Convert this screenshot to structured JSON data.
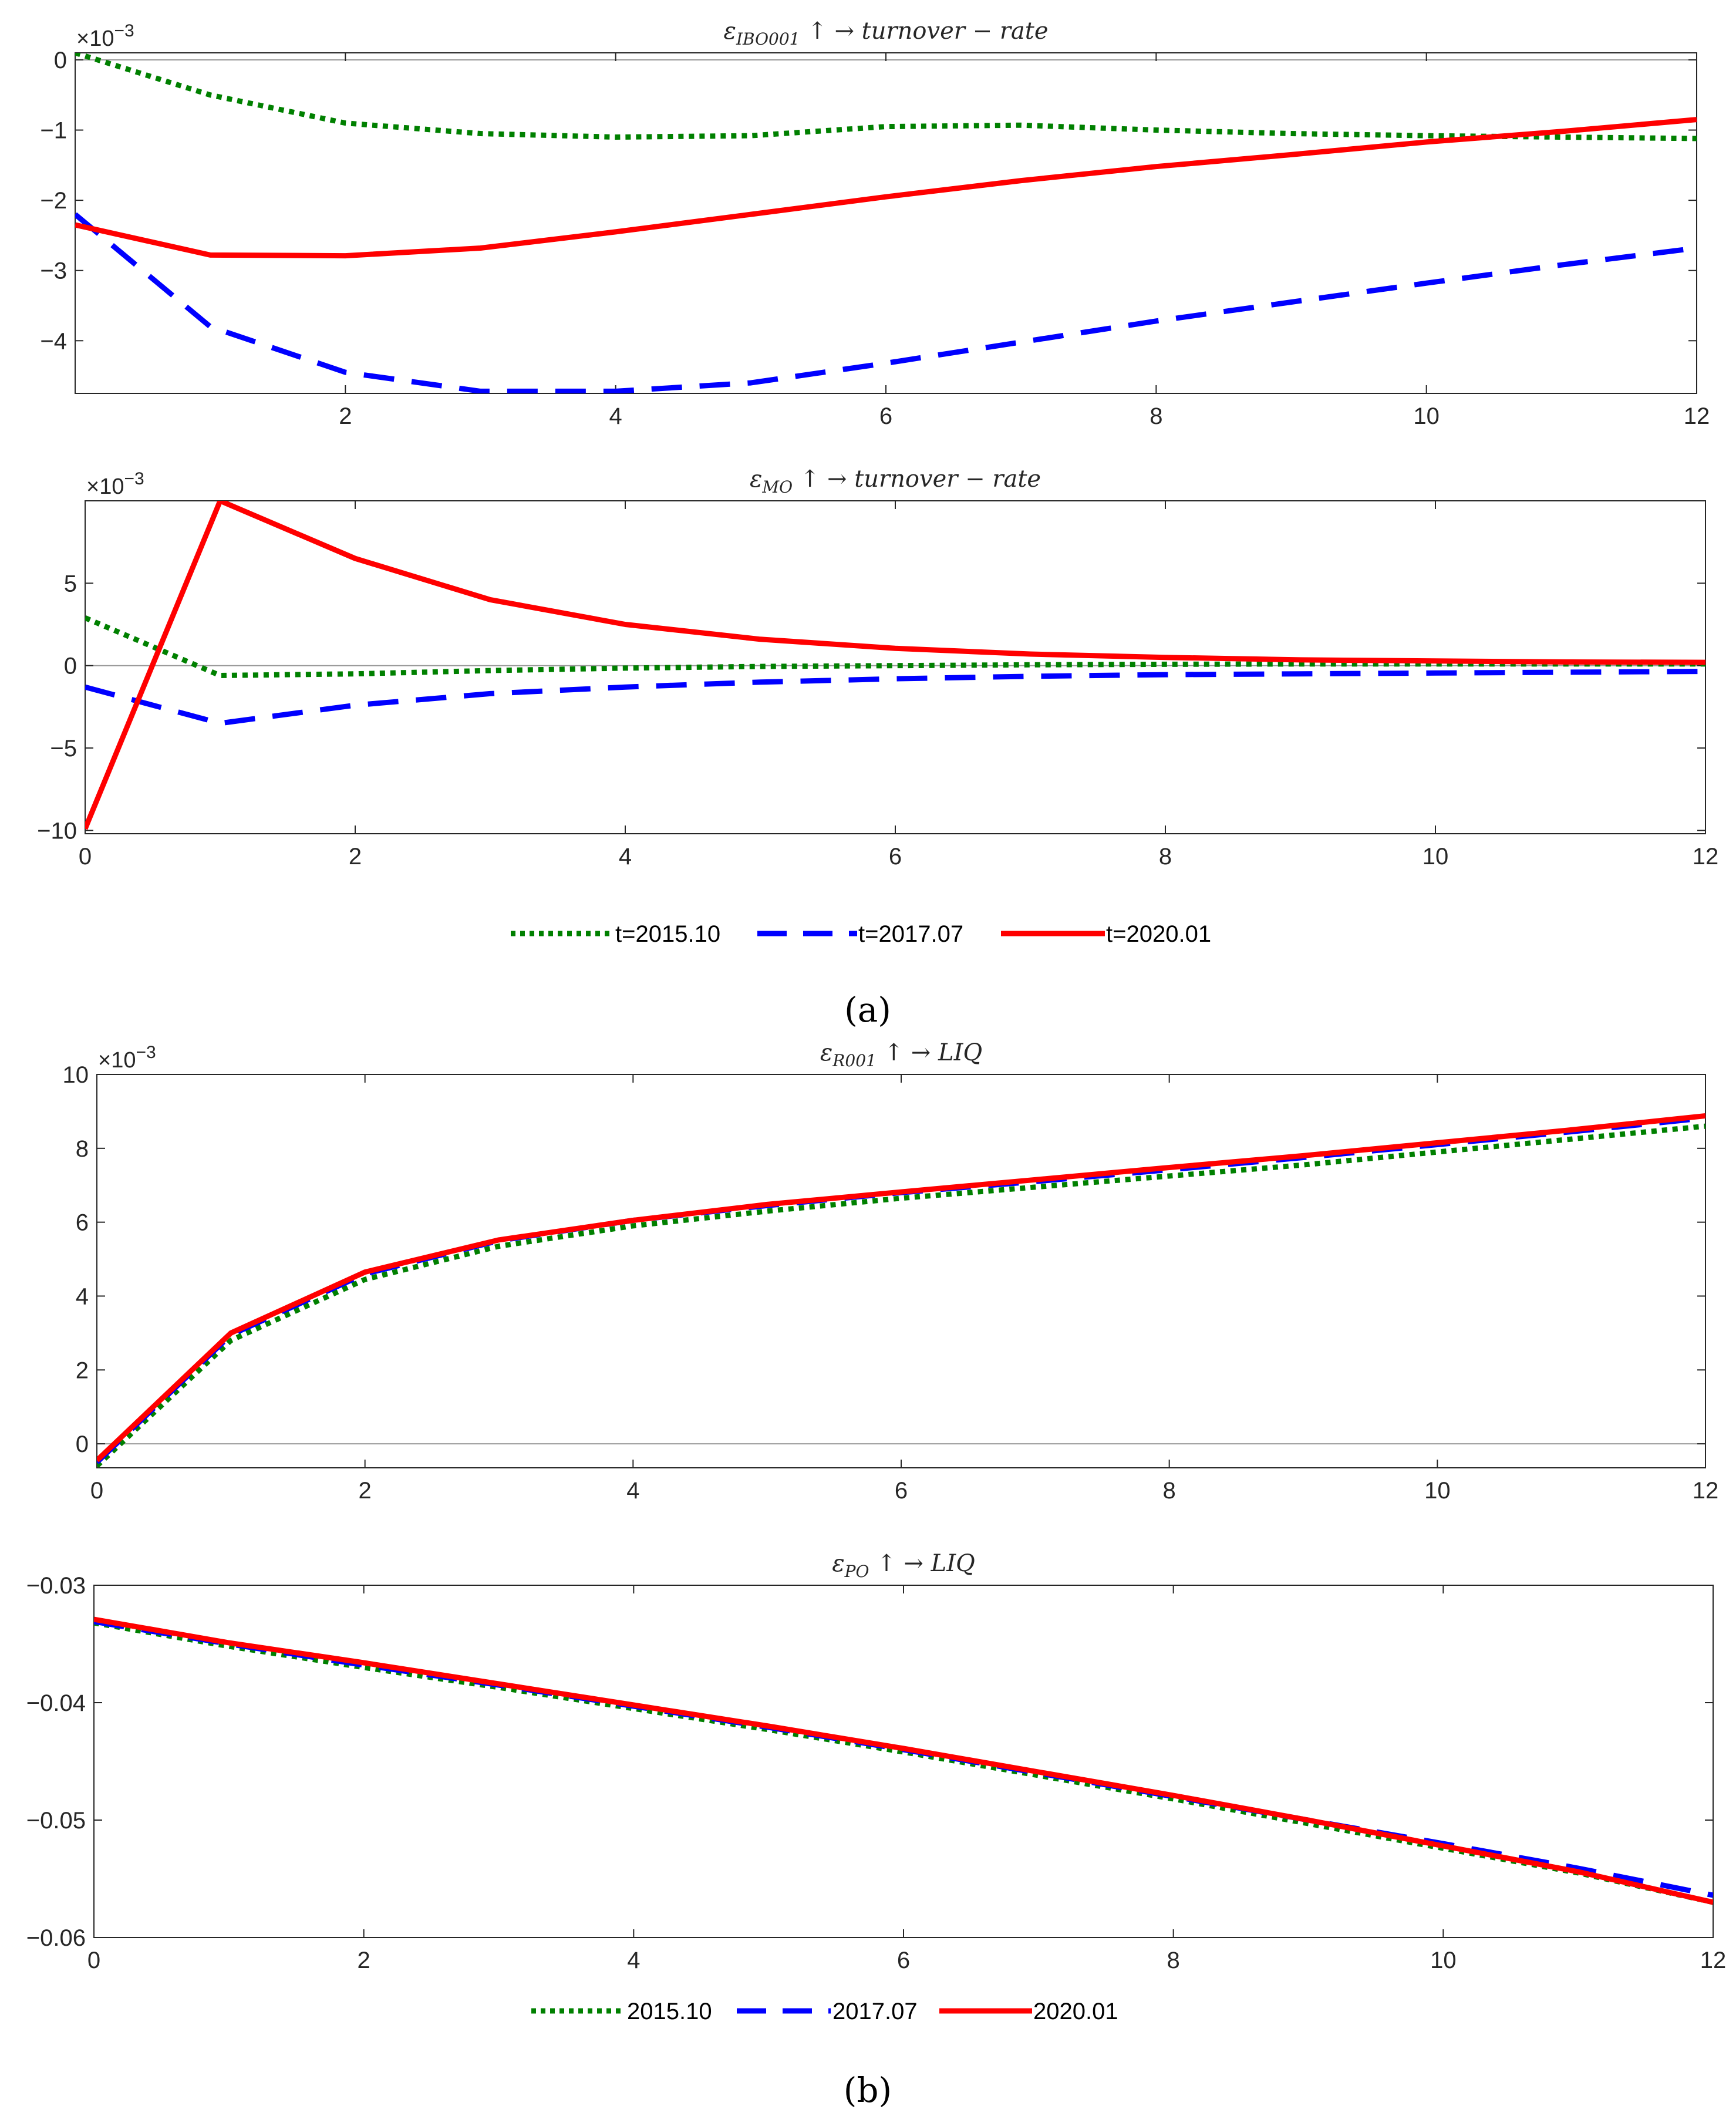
{
  "chart_data": [
    {
      "type": "line",
      "panel": "a-top",
      "title": "ε_IBO001 ↑ →  turnover − rate",
      "title_symbol": "ε",
      "title_sub": "IBO001",
      "title_rest": " ↑ →  turnover − rate",
      "y_multiplier": "×10",
      "y_exponent": "−3",
      "xlim": [
        0,
        12
      ],
      "ylim": [
        -4.75,
        0.1
      ],
      "xticks": [
        2,
        4,
        6,
        8,
        10,
        12
      ],
      "yticks": [
        0,
        -1,
        -2,
        -3,
        -4
      ],
      "ytick_labels": [
        "0",
        "−1",
        "−2",
        "−3",
        "−4"
      ],
      "zero_line": true,
      "x": [
        0,
        1,
        2,
        3,
        4,
        5,
        6,
        7,
        8,
        9,
        10,
        11,
        12
      ],
      "series": [
        {
          "name": "t=2015.10",
          "color": "#008000",
          "style": "dotted",
          "values": [
            0.1,
            -0.5,
            -0.9,
            -1.05,
            -1.1,
            -1.08,
            -0.95,
            -0.93,
            -1.0,
            -1.05,
            -1.08,
            -1.1,
            -1.12
          ]
        },
        {
          "name": "t=2017.07",
          "color": "#0000ff",
          "style": "dashed",
          "values": [
            -2.2,
            -3.8,
            -4.45,
            -4.72,
            -4.72,
            -4.6,
            -4.32,
            -4.02,
            -3.72,
            -3.45,
            -3.18,
            -2.92,
            -2.68
          ]
        },
        {
          "name": "t=2020.01",
          "color": "#ff0000",
          "style": "solid",
          "values": [
            -2.35,
            -2.78,
            -2.79,
            -2.68,
            -2.45,
            -2.2,
            -1.95,
            -1.72,
            -1.52,
            -1.35,
            -1.17,
            -1.02,
            -0.85
          ]
        }
      ]
    },
    {
      "type": "line",
      "panel": "a-bottom",
      "title": "ε_MO ↑ →  turnover − rate",
      "title_symbol": "ε",
      "title_sub": "MO",
      "title_rest": " ↑ →  turnover − rate",
      "y_multiplier": "×10",
      "y_exponent": "−3",
      "xlim": [
        0,
        12
      ],
      "ylim": [
        -10.2,
        10.0
      ],
      "xticks": [
        0,
        2,
        4,
        6,
        8,
        10,
        12
      ],
      "yticks": [
        5,
        0,
        -5,
        -10
      ],
      "ytick_labels": [
        "5",
        "0",
        "−5",
        "−10"
      ],
      "zero_line": true,
      "x": [
        0,
        1,
        2,
        3,
        4,
        5,
        6,
        7,
        8,
        9,
        10,
        11,
        12
      ],
      "series": [
        {
          "name": "t=2015.10",
          "color": "#008000",
          "style": "dotted",
          "values": [
            2.9,
            -0.6,
            -0.5,
            -0.3,
            -0.15,
            -0.05,
            0.0,
            0.05,
            0.08,
            0.1,
            0.1,
            0.1,
            0.1
          ]
        },
        {
          "name": "t=2017.07",
          "color": "#0000ff",
          "style": "dashed",
          "values": [
            -1.3,
            -3.5,
            -2.4,
            -1.7,
            -1.3,
            -1.0,
            -0.8,
            -0.65,
            -0.55,
            -0.5,
            -0.45,
            -0.4,
            -0.35
          ]
        },
        {
          "name": "t=2020.01",
          "color": "#ff0000",
          "style": "solid",
          "values": [
            -9.9,
            10.0,
            6.5,
            4.0,
            2.5,
            1.6,
            1.05,
            0.7,
            0.5,
            0.35,
            0.28,
            0.22,
            0.2
          ]
        }
      ]
    },
    {
      "type": "line",
      "panel": "b-top",
      "title": "ε_R001 ↑ →  LIQ",
      "title_symbol": "ε",
      "title_sub": "R001",
      "title_rest": " ↑ →  LIQ",
      "y_multiplier": "×10",
      "y_exponent": "−3",
      "xlim": [
        0,
        12
      ],
      "ylim": [
        -0.65,
        10.0
      ],
      "xticks": [
        0,
        2,
        4,
        6,
        8,
        10,
        12
      ],
      "yticks": [
        10,
        8,
        6,
        4,
        2,
        0
      ],
      "ytick_labels": [
        "10",
        "8",
        "6",
        "4",
        "2",
        "0"
      ],
      "zero_line": true,
      "x": [
        0,
        1,
        2,
        3,
        4,
        5,
        6,
        7,
        8,
        9,
        10,
        11,
        12
      ],
      "series": [
        {
          "name": "2015.10",
          "color": "#008000",
          "style": "dotted",
          "values": [
            -0.6,
            2.8,
            4.45,
            5.35,
            5.9,
            6.3,
            6.65,
            6.95,
            7.25,
            7.55,
            7.9,
            8.25,
            8.6
          ]
        },
        {
          "name": "2017.07",
          "color": "#0000ff",
          "style": "dashed",
          "values": [
            -0.5,
            2.95,
            4.6,
            5.5,
            6.05,
            6.45,
            6.8,
            7.1,
            7.42,
            7.75,
            8.1,
            8.45,
            8.82
          ]
        },
        {
          "name": "2020.01",
          "color": "#ff0000",
          "style": "solid",
          "values": [
            -0.45,
            3.0,
            4.65,
            5.52,
            6.05,
            6.48,
            6.82,
            7.15,
            7.48,
            7.8,
            8.15,
            8.5,
            8.88
          ]
        }
      ]
    },
    {
      "type": "line",
      "panel": "b-bottom",
      "title": "ε_PO ↑ →  LIQ",
      "title_symbol": "ε",
      "title_sub": "PO",
      "title_rest": " ↑ →  LIQ",
      "xlim": [
        0,
        12
      ],
      "ylim": [
        -0.06,
        -0.03
      ],
      "xticks": [
        0,
        2,
        4,
        6,
        8,
        10,
        12
      ],
      "yticks": [
        -0.03,
        -0.04,
        -0.05,
        -0.06
      ],
      "ytick_labels": [
        "−0.03",
        "−0.04",
        "−0.05",
        "−0.06"
      ],
      "zero_line": false,
      "x": [
        0,
        1,
        2,
        3,
        4,
        5,
        6,
        7,
        8,
        9,
        10,
        11,
        12
      ],
      "series": [
        {
          "name": "2015.10",
          "color": "#008000",
          "style": "dotted",
          "values": [
            -0.0332,
            -0.0352,
            -0.037,
            -0.0387,
            -0.0405,
            -0.0423,
            -0.0442,
            -0.0462,
            -0.0482,
            -0.0503,
            -0.0524,
            -0.0545,
            -0.057
          ]
        },
        {
          "name": "2017.07",
          "color": "#0000ff",
          "style": "dashed",
          "values": [
            -0.0331,
            -0.035,
            -0.0368,
            -0.0385,
            -0.0403,
            -0.0421,
            -0.044,
            -0.046,
            -0.048,
            -0.05,
            -0.052,
            -0.0541,
            -0.0564
          ]
        },
        {
          "name": "2020.01",
          "color": "#ff0000",
          "style": "solid",
          "values": [
            -0.0329,
            -0.0349,
            -0.0366,
            -0.0384,
            -0.0402,
            -0.042,
            -0.0439,
            -0.0459,
            -0.0479,
            -0.05,
            -0.0522,
            -0.0544,
            -0.057
          ]
        }
      ]
    }
  ],
  "legends": {
    "a": [
      "t=2015.10",
      "t=2017.07",
      "t=2020.01"
    ],
    "b": [
      "2015.10",
      "2017.07",
      "2020.01"
    ]
  },
  "panel_labels": {
    "a": "(a)",
    "b": "(b)"
  }
}
